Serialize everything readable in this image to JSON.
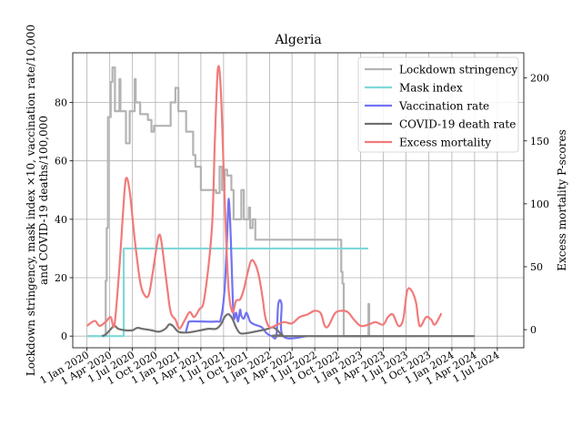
{
  "chart_data": {
    "type": "line",
    "title": "Algeria",
    "ylabel_left_line1": "Lockdown stringency, mask index ×10, vaccination rate/10,000",
    "ylabel_left_line2": "and COVID-19 deaths/100,000",
    "ylabel_right": "Excess mortality P-scores",
    "ylim_left": [
      -4,
      97
    ],
    "ylim_right": [
      -14.4,
      220
    ],
    "y_ticks_left": [
      0,
      20,
      40,
      60,
      80
    ],
    "y_ticks_right": [
      0,
      50,
      100,
      150,
      200
    ],
    "x_ticks": [
      {
        "date": "2020-01-01",
        "label": "1 Jan 2020"
      },
      {
        "date": "2020-04-01",
        "label": "1 Apr 2020"
      },
      {
        "date": "2020-07-01",
        "label": "1 Jul 2020"
      },
      {
        "date": "2020-10-01",
        "label": "1 Oct 2020"
      },
      {
        "date": "2021-01-01",
        "label": "1 Jan 2021"
      },
      {
        "date": "2021-04-01",
        "label": "1 Apr 2021"
      },
      {
        "date": "2021-07-01",
        "label": "1 Jul 2021"
      },
      {
        "date": "2021-10-01",
        "label": "1 Oct 2021"
      },
      {
        "date": "2022-01-01",
        "label": "1 Jan 2022"
      },
      {
        "date": "2022-04-01",
        "label": "1 Apr 2022"
      },
      {
        "date": "2022-07-01",
        "label": "1 Jul 2022"
      },
      {
        "date": "2022-10-01",
        "label": "1 Oct 2022"
      },
      {
        "date": "2023-01-01",
        "label": "1 Jan 2023"
      },
      {
        "date": "2023-04-01",
        "label": "1 Apr 2023"
      },
      {
        "date": "2023-07-01",
        "label": "1 Jul 2023"
      },
      {
        "date": "2023-10-01",
        "label": "1 Oct 2023"
      },
      {
        "date": "2024-01-01",
        "label": "1 Jan 2024"
      },
      {
        "date": "2024-04-01",
        "label": "1 Apr 2024"
      },
      {
        "date": "2024-07-01",
        "label": "1 Jul 2024"
      }
    ],
    "x_range": [
      "2019-11-05",
      "2024-10-15"
    ],
    "grid": true,
    "legend_position": "top-right",
    "series": [
      {
        "name": "Lockdown stringency",
        "axis": "left",
        "color": "#b3b3b3",
        "style": "step",
        "points": [
          [
            "2020-01-01",
            0
          ],
          [
            "2020-03-12",
            0
          ],
          [
            "2020-03-16",
            19
          ],
          [
            "2020-03-20",
            37
          ],
          [
            "2020-03-25",
            75
          ],
          [
            "2020-04-05",
            87
          ],
          [
            "2020-04-12",
            92
          ],
          [
            "2020-04-22",
            77
          ],
          [
            "2020-05-10",
            88
          ],
          [
            "2020-05-14",
            77
          ],
          [
            "2020-06-05",
            66
          ],
          [
            "2020-06-20",
            77
          ],
          [
            "2020-07-10",
            88
          ],
          [
            "2020-07-14",
            80
          ],
          [
            "2020-08-01",
            76
          ],
          [
            "2020-09-01",
            74
          ],
          [
            "2020-09-15",
            70
          ],
          [
            "2020-09-25",
            72
          ],
          [
            "2020-12-01",
            80
          ],
          [
            "2020-12-20",
            85
          ],
          [
            "2021-01-01",
            77
          ],
          [
            "2021-02-01",
            70
          ],
          [
            "2021-03-01",
            62
          ],
          [
            "2021-03-10",
            58
          ],
          [
            "2021-04-01",
            50
          ],
          [
            "2021-05-15",
            50
          ],
          [
            "2021-06-01",
            49
          ],
          [
            "2021-06-15",
            58
          ],
          [
            "2021-06-25",
            50
          ],
          [
            "2021-07-05",
            57
          ],
          [
            "2021-07-15",
            55
          ],
          [
            "2021-08-01",
            50
          ],
          [
            "2021-08-10",
            40
          ],
          [
            "2021-09-10",
            50
          ],
          [
            "2021-09-20",
            40
          ],
          [
            "2021-10-10",
            44
          ],
          [
            "2021-10-15",
            37
          ],
          [
            "2021-10-25",
            40
          ],
          [
            "2021-11-05",
            33
          ],
          [
            "2022-01-01",
            33
          ],
          [
            "2022-10-12",
            33
          ],
          [
            "2022-10-15",
            22
          ],
          [
            "2022-10-20",
            18
          ],
          [
            "2022-10-25",
            0
          ],
          [
            "2023-01-01",
            0
          ],
          [
            "2023-02-01",
            11
          ],
          [
            "2023-02-04",
            0
          ]
        ]
      },
      {
        "name": "Mask index",
        "axis": "left",
        "color": "#7fd8d8",
        "style": "step",
        "points": [
          [
            "2020-01-01",
            0
          ],
          [
            "2020-05-25",
            0
          ],
          [
            "2020-05-27",
            30
          ],
          [
            "2023-01-31",
            30
          ]
        ]
      },
      {
        "name": "Vaccination rate",
        "axis": "left",
        "color": "#7272f2",
        "style": "line",
        "points": [
          [
            "2021-01-30",
            1
          ],
          [
            "2021-02-08",
            4
          ],
          [
            "2021-02-15",
            5
          ],
          [
            "2021-04-01",
            5
          ],
          [
            "2021-06-01",
            5
          ],
          [
            "2021-06-20",
            6
          ],
          [
            "2021-07-05",
            16
          ],
          [
            "2021-07-15",
            34
          ],
          [
            "2021-07-22",
            47
          ],
          [
            "2021-07-30",
            33
          ],
          [
            "2021-08-07",
            12
          ],
          [
            "2021-08-12",
            6
          ],
          [
            "2021-08-20",
            8
          ],
          [
            "2021-08-28",
            5
          ],
          [
            "2021-09-05",
            9
          ],
          [
            "2021-09-10",
            7
          ],
          [
            "2021-09-20",
            6
          ],
          [
            "2021-10-01",
            8
          ],
          [
            "2021-10-15",
            5
          ],
          [
            "2021-11-01",
            4
          ],
          [
            "2021-12-01",
            3
          ],
          [
            "2021-12-20",
            1
          ],
          [
            "2022-01-10",
            0
          ],
          [
            "2022-01-28",
            0
          ],
          [
            "2022-02-05",
            11
          ],
          [
            "2022-02-18",
            11
          ],
          [
            "2022-02-24",
            0
          ],
          [
            "2022-06-01",
            0
          ]
        ]
      },
      {
        "name": "COVID-19 death rate",
        "axis": "left",
        "color": "#707070",
        "style": "line",
        "points": [
          [
            "2020-03-01",
            0
          ],
          [
            "2020-03-15",
            0.5
          ],
          [
            "2020-04-01",
            2
          ],
          [
            "2020-04-20",
            3.5
          ],
          [
            "2020-05-05",
            2.5
          ],
          [
            "2020-06-01",
            2
          ],
          [
            "2020-07-01",
            2
          ],
          [
            "2020-07-20",
            2.8
          ],
          [
            "2020-08-10",
            2.5
          ],
          [
            "2020-09-15",
            2
          ],
          [
            "2020-10-15",
            1.5
          ],
          [
            "2020-11-10",
            2.5
          ],
          [
            "2020-11-25",
            4
          ],
          [
            "2020-12-10",
            3.5
          ],
          [
            "2021-01-01",
            1.5
          ],
          [
            "2021-02-01",
            1.2
          ],
          [
            "2021-03-01",
            1.5
          ],
          [
            "2021-04-01",
            2
          ],
          [
            "2021-05-01",
            2.5
          ],
          [
            "2021-06-01",
            2.5
          ],
          [
            "2021-06-20",
            4
          ],
          [
            "2021-07-05",
            6.5
          ],
          [
            "2021-07-20",
            7.5
          ],
          [
            "2021-08-05",
            6
          ],
          [
            "2021-08-20",
            3
          ],
          [
            "2021-09-05",
            1
          ],
          [
            "2021-10-01",
            1
          ],
          [
            "2021-11-01",
            1.5
          ],
          [
            "2021-12-01",
            2
          ],
          [
            "2021-12-25",
            2.5
          ],
          [
            "2022-01-15",
            3
          ],
          [
            "2022-02-01",
            2
          ],
          [
            "2022-02-20",
            0.5
          ],
          [
            "2022-03-15",
            0
          ],
          [
            "2024-04-01",
            0
          ]
        ]
      },
      {
        "name": "Excess mortality",
        "axis": "right",
        "color": "#f27a7a",
        "style": "line",
        "points": [
          [
            "2020-01-01",
            3
          ],
          [
            "2020-02-01",
            7
          ],
          [
            "2020-02-20",
            3
          ],
          [
            "2020-03-15",
            6
          ],
          [
            "2020-04-05",
            10
          ],
          [
            "2020-04-20",
            4
          ],
          [
            "2020-05-10",
            50
          ],
          [
            "2020-05-25",
            95
          ],
          [
            "2020-06-05",
            120
          ],
          [
            "2020-06-20",
            110
          ],
          [
            "2020-07-10",
            72
          ],
          [
            "2020-08-01",
            38
          ],
          [
            "2020-08-20",
            27
          ],
          [
            "2020-09-05",
            28
          ],
          [
            "2020-09-20",
            45
          ],
          [
            "2020-10-05",
            65
          ],
          [
            "2020-10-15",
            75
          ],
          [
            "2020-10-25",
            70
          ],
          [
            "2020-11-15",
            37
          ],
          [
            "2020-12-01",
            14
          ],
          [
            "2020-12-20",
            8
          ],
          [
            "2021-01-05",
            1
          ],
          [
            "2021-01-25",
            7
          ],
          [
            "2021-02-15",
            14
          ],
          [
            "2021-03-05",
            10
          ],
          [
            "2021-03-25",
            16
          ],
          [
            "2021-04-15",
            25
          ],
          [
            "2021-05-15",
            80
          ],
          [
            "2021-05-27",
            150
          ],
          [
            "2021-06-08",
            207
          ],
          [
            "2021-06-20",
            190
          ],
          [
            "2021-07-05",
            105
          ],
          [
            "2021-07-20",
            35
          ],
          [
            "2021-08-05",
            14
          ],
          [
            "2021-08-20",
            23
          ],
          [
            "2021-09-05",
            24
          ],
          [
            "2021-09-20",
            32
          ],
          [
            "2021-10-05",
            45
          ],
          [
            "2021-10-20",
            55
          ],
          [
            "2021-11-05",
            52
          ],
          [
            "2021-11-20",
            42
          ],
          [
            "2021-12-05",
            24
          ],
          [
            "2021-12-15",
            10
          ],
          [
            "2022-01-01",
            2
          ],
          [
            "2022-02-01",
            4
          ],
          [
            "2022-03-01",
            6
          ],
          [
            "2022-04-01",
            5
          ],
          [
            "2022-05-01",
            10
          ],
          [
            "2022-06-01",
            12
          ],
          [
            "2022-07-01",
            15
          ],
          [
            "2022-07-25",
            13
          ],
          [
            "2022-08-10",
            3
          ],
          [
            "2022-08-25",
            3
          ],
          [
            "2022-09-20",
            13
          ],
          [
            "2022-10-15",
            15
          ],
          [
            "2022-11-10",
            14
          ],
          [
            "2022-12-05",
            8
          ],
          [
            "2023-01-01",
            3
          ],
          [
            "2023-02-01",
            4
          ],
          [
            "2023-03-01",
            6
          ],
          [
            "2023-04-01",
            4
          ],
          [
            "2023-04-20",
            10
          ],
          [
            "2023-05-10",
            12
          ],
          [
            "2023-06-01",
            3
          ],
          [
            "2023-06-20",
            8
          ],
          [
            "2023-07-05",
            30
          ],
          [
            "2023-07-20",
            32
          ],
          [
            "2023-08-10",
            22
          ],
          [
            "2023-08-25",
            3
          ],
          [
            "2023-09-20",
            10
          ],
          [
            "2023-10-10",
            8
          ],
          [
            "2023-10-25",
            4
          ],
          [
            "2023-11-20",
            13
          ]
        ]
      }
    ]
  }
}
